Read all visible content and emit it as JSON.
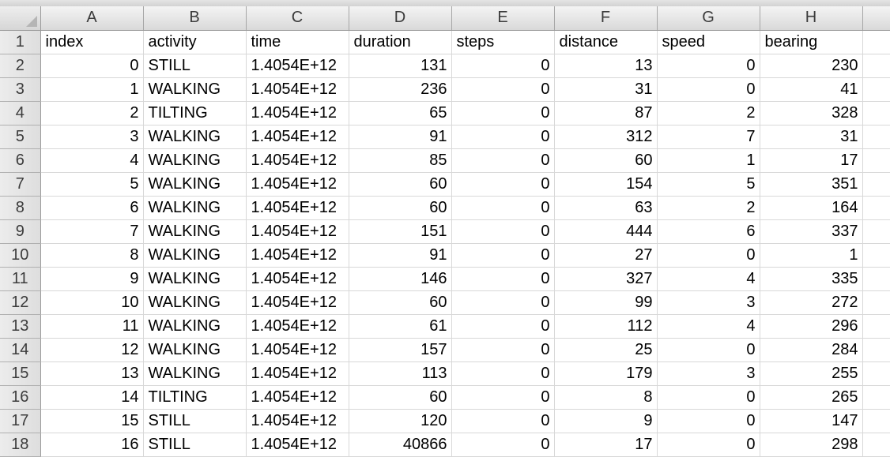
{
  "columns": [
    "A",
    "B",
    "C",
    "D",
    "E",
    "F",
    "G",
    "H"
  ],
  "header_row": {
    "row_label": "1",
    "cells": [
      "index",
      "activity",
      "time",
      "duration",
      "steps",
      "distance",
      "speed",
      "bearing"
    ]
  },
  "rows": [
    {
      "row_label": "2",
      "cells": [
        "0",
        "STILL",
        "1.4054E+12",
        "131",
        "0",
        "13",
        "0",
        "230"
      ]
    },
    {
      "row_label": "3",
      "cells": [
        "1",
        "WALKING",
        "1.4054E+12",
        "236",
        "0",
        "31",
        "0",
        "41"
      ]
    },
    {
      "row_label": "4",
      "cells": [
        "2",
        "TILTING",
        "1.4054E+12",
        "65",
        "0",
        "87",
        "2",
        "328"
      ]
    },
    {
      "row_label": "5",
      "cells": [
        "3",
        "WALKING",
        "1.4054E+12",
        "91",
        "0",
        "312",
        "7",
        "31"
      ]
    },
    {
      "row_label": "6",
      "cells": [
        "4",
        "WALKING",
        "1.4054E+12",
        "85",
        "0",
        "60",
        "1",
        "17"
      ]
    },
    {
      "row_label": "7",
      "cells": [
        "5",
        "WALKING",
        "1.4054E+12",
        "60",
        "0",
        "154",
        "5",
        "351"
      ]
    },
    {
      "row_label": "8",
      "cells": [
        "6",
        "WALKING",
        "1.4054E+12",
        "60",
        "0",
        "63",
        "2",
        "164"
      ]
    },
    {
      "row_label": "9",
      "cells": [
        "7",
        "WALKING",
        "1.4054E+12",
        "151",
        "0",
        "444",
        "6",
        "337"
      ]
    },
    {
      "row_label": "10",
      "cells": [
        "8",
        "WALKING",
        "1.4054E+12",
        "91",
        "0",
        "27",
        "0",
        "1"
      ]
    },
    {
      "row_label": "11",
      "cells": [
        "9",
        "WALKING",
        "1.4054E+12",
        "146",
        "0",
        "327",
        "4",
        "335"
      ]
    },
    {
      "row_label": "12",
      "cells": [
        "10",
        "WALKING",
        "1.4054E+12",
        "60",
        "0",
        "99",
        "3",
        "272"
      ]
    },
    {
      "row_label": "13",
      "cells": [
        "11",
        "WALKING",
        "1.4054E+12",
        "61",
        "0",
        "112",
        "4",
        "296"
      ]
    },
    {
      "row_label": "14",
      "cells": [
        "12",
        "WALKING",
        "1.4054E+12",
        "157",
        "0",
        "25",
        "0",
        "284"
      ]
    },
    {
      "row_label": "15",
      "cells": [
        "13",
        "WALKING",
        "1.4054E+12",
        "113",
        "0",
        "179",
        "3",
        "255"
      ]
    },
    {
      "row_label": "16",
      "cells": [
        "14",
        "TILTING",
        "1.4054E+12",
        "60",
        "0",
        "8",
        "0",
        "265"
      ]
    },
    {
      "row_label": "17",
      "cells": [
        "15",
        "STILL",
        "1.4054E+12",
        "120",
        "0",
        "9",
        "0",
        "147"
      ]
    },
    {
      "row_label": "18",
      "cells": [
        "16",
        "STILL",
        "1.4054E+12",
        "40866",
        "0",
        "17",
        "0",
        "298"
      ]
    }
  ],
  "cell_alignment": [
    "right",
    "left",
    "left",
    "right",
    "right",
    "right",
    "right",
    "right"
  ],
  "colors": {
    "header_background": "#e2e2e2",
    "gridline": "#d8d8d8",
    "header_text": "#3c3c3c"
  }
}
